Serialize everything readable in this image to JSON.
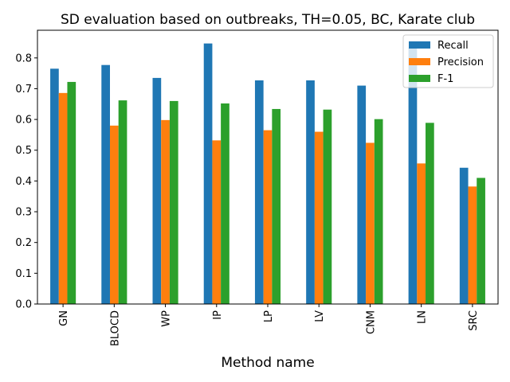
{
  "chart_data": {
    "type": "bar",
    "title": "SD evaluation based on outbreaks, TH=0.05, BC, Karate club",
    "xlabel": "Method name",
    "ylabel": "",
    "ylim": [
      0,
      0.89
    ],
    "yticks": [
      0.0,
      0.1,
      0.2,
      0.3,
      0.4,
      0.5,
      0.6,
      0.7,
      0.8
    ],
    "ytick_labels": [
      "0.0",
      "0.1",
      "0.2",
      "0.3",
      "0.4",
      "0.5",
      "0.6",
      "0.7",
      "0.8"
    ],
    "categories": [
      "GN",
      "BLOCD",
      "WP",
      "IP",
      "LP",
      "LV",
      "CNM",
      "LN",
      "SRC"
    ],
    "series": [
      {
        "name": "Recall",
        "color": "#1f77b4",
        "values": [
          0.765,
          0.777,
          0.735,
          0.847,
          0.727,
          0.727,
          0.71,
          0.833,
          0.443
        ]
      },
      {
        "name": "Precision",
        "color": "#ff7f0e",
        "values": [
          0.686,
          0.58,
          0.598,
          0.532,
          0.565,
          0.56,
          0.524,
          0.457,
          0.382
        ]
      },
      {
        "name": "F-1",
        "color": "#2ca02c",
        "values": [
          0.722,
          0.662,
          0.66,
          0.652,
          0.634,
          0.632,
          0.601,
          0.589,
          0.41
        ]
      }
    ],
    "legend": {
      "position": "top-right"
    },
    "grid": false
  }
}
